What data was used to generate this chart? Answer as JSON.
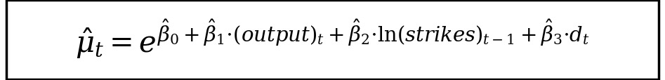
{
  "formula": "$\\hat{\\mu}_t = e^{\\hat{\\beta}_0 + \\hat{\\beta}_1{\\cdot}(output)_t + \\hat{\\beta}_2{\\cdot}\\ln(strikes)_{t-1} + \\hat{\\beta}_3{\\cdot}d_t}$",
  "background_color": "#ffffff",
  "text_color": "#000000",
  "border_color": "#000000",
  "font_size": 30,
  "fig_width": 9.47,
  "fig_height": 1.15,
  "dpi": 100
}
